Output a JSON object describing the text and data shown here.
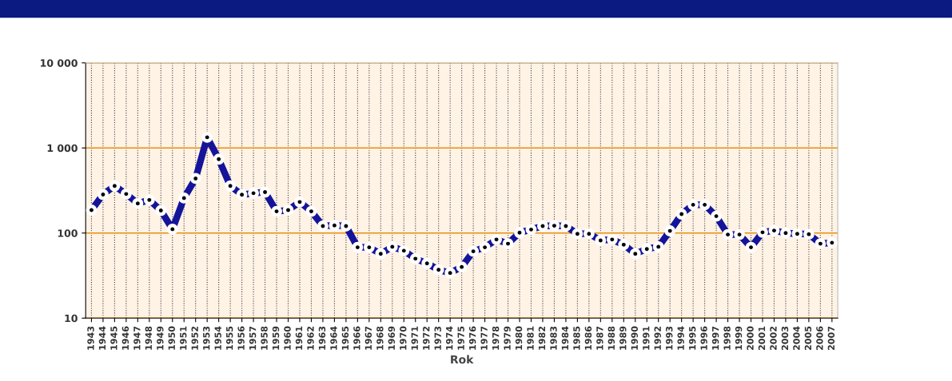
{
  "chart_data": {
    "type": "line",
    "xlabel": "Rok",
    "log": "y",
    "categories": [
      "1943",
      "1944",
      "1945",
      "1946",
      "1947",
      "1948",
      "1949",
      "1950",
      "1951",
      "1952",
      "1953",
      "1954",
      "1955",
      "1956",
      "1957",
      "1958",
      "1959",
      "1960",
      "1961",
      "1962",
      "1963",
      "1964",
      "1965",
      "1966",
      "1967",
      "1968",
      "1969",
      "1970",
      "1971",
      "1972",
      "1973",
      "1974",
      "1975",
      "1976",
      "1977",
      "1978",
      "1979",
      "1980",
      "1981",
      "1982",
      "1983",
      "1984",
      "1985",
      "1986",
      "1987",
      "1988",
      "1989",
      "1990",
      "1991",
      "1992",
      "1993",
      "1994",
      "1995",
      "1996",
      "1997",
      "1998",
      "1999",
      "2000",
      "2001",
      "2002",
      "2003",
      "2004",
      "2005",
      "2006",
      "2007"
    ],
    "series": [
      {
        "color": "#14149a",
        "values": [
          186,
          284,
          358,
          288,
          223,
          245,
          184,
          111,
          258,
          438,
          1334,
          738,
          358,
          282,
          294,
          303,
          180,
          186,
          232,
          180,
          121,
          123,
          121,
          68,
          68,
          57,
          69,
          62,
          50,
          44,
          37,
          34,
          40,
          61,
          68,
          84,
          75,
          101,
          110,
          121,
          122,
          121,
          98,
          98,
          82,
          84,
          73,
          57,
          65,
          69,
          106,
          167,
          215,
          215,
          158,
          96,
          96,
          68,
          102,
          107,
          100,
          98,
          97,
          75,
          77
        ]
      }
    ],
    "ylim": [
      10,
      10000
    ],
    "yticks": [
      {
        "value": 10,
        "label": "10"
      },
      {
        "value": 100,
        "label": "100"
      },
      {
        "value": 1000,
        "label": "1 000"
      },
      {
        "value": 10000,
        "label": "10 000"
      }
    ],
    "grid": true,
    "marker": "circle",
    "line_style": "solid"
  }
}
